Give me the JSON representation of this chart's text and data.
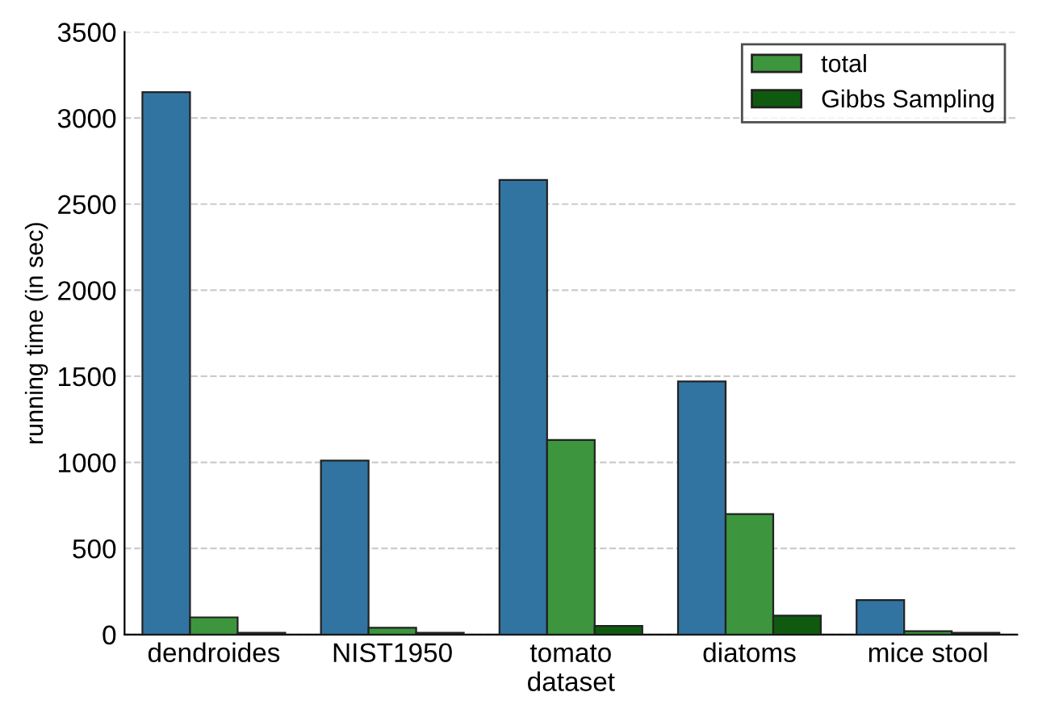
{
  "chart_data": {
    "type": "bar",
    "ylabel": "running time (in sec)",
    "categories": [
      "dendroides",
      "NIST1950",
      "tomato\ndataset",
      "diatoms",
      "mice stool"
    ],
    "series": [
      {
        "name": null,
        "color": "#3274a1",
        "values": [
          3150,
          1010,
          2640,
          1470,
          200
        ]
      },
      {
        "name": "total",
        "color": "#3d963d",
        "values": [
          100,
          40,
          1130,
          700,
          20
        ]
      },
      {
        "name": "Gibbs Sampling",
        "color": "#0f5a0f",
        "values": [
          10,
          10,
          50,
          110,
          10
        ]
      }
    ],
    "ylim": [
      0,
      3500
    ],
    "yticks": [
      0,
      500,
      1000,
      1500,
      2000,
      2500,
      3000,
      3500
    ],
    "grid": "y",
    "legend": "top right"
  }
}
